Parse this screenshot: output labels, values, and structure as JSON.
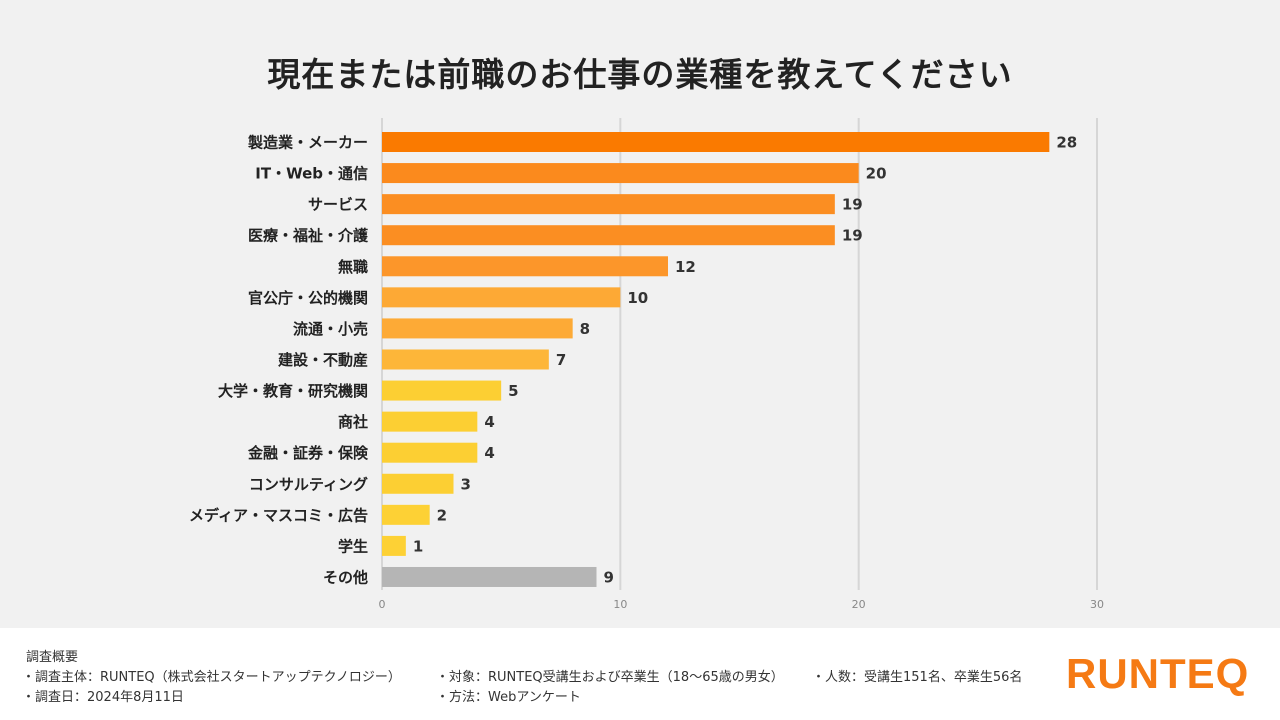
{
  "chart_data": {
    "type": "bar",
    "orientation": "horizontal",
    "title": "現在または前職のお仕事の業種を教えてください",
    "categories": [
      "製造業・メーカー",
      "IT・Web・通信",
      "サービス",
      "医療・福祉・介護",
      "無職",
      "官公庁・公的機関",
      "流通・小売",
      "建設・不動産",
      "大学・教育・研究機関",
      "商社",
      "金融・証券・保険",
      "コンサルティング",
      "メディア・マスコミ・広告",
      "学生",
      "その他"
    ],
    "values": [
      28,
      20,
      19,
      19,
      12,
      10,
      8,
      7,
      5,
      4,
      4,
      3,
      2,
      1,
      9
    ],
    "colors": [
      "#fa7a00",
      "#fb8a1d",
      "#fb8e22",
      "#fb8e22",
      "#fc962a",
      "#fda935",
      "#fdaa36",
      "#fdb639",
      "#fccf33",
      "#fccf33",
      "#fccf33",
      "#fccf33",
      "#fdd135",
      "#fdd135",
      "#b5b5b5"
    ],
    "xlim": [
      0,
      30
    ],
    "xticks": [
      "0",
      "10",
      "20",
      "30"
    ],
    "grid": true
  },
  "footer": {
    "heading": "調査概要",
    "notes": {
      "sponsor": "・調査主体：RUNTEQ（株式会社スタートアップテクノロジー）",
      "target": "・対象：RUNTEQ受講生および卒業生（18〜65歳の男女）",
      "count": "・人数：受講生151名、卒業生56名",
      "date": "・調査日：2024年8月11日",
      "method": "・方法：Webアンケート"
    },
    "logo_text": "RUNTEQ",
    "logo_color": "#f57a14"
  }
}
